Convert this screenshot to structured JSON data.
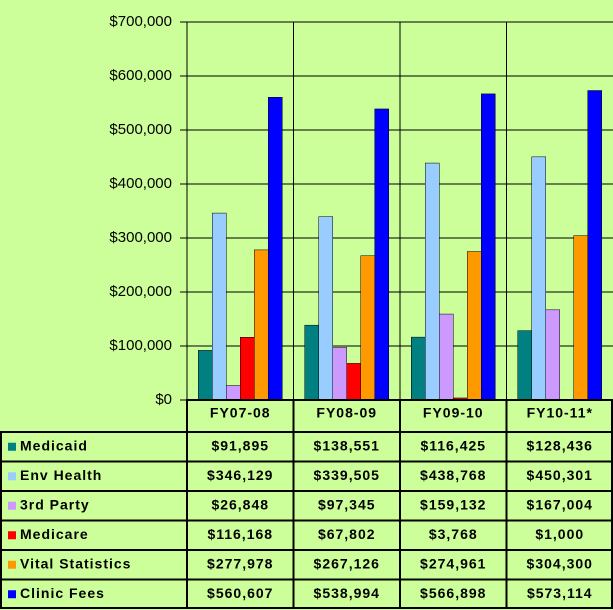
{
  "chart_data": {
    "type": "bar",
    "categories": [
      "FY07-08",
      "FY08-09",
      "FY09-10",
      "FY10-11*"
    ],
    "ylim": [
      0,
      700000
    ],
    "yticks": [
      {
        "value": 0,
        "label": "$0"
      },
      {
        "value": 100000,
        "label": "$100,000"
      },
      {
        "value": 200000,
        "label": "$200,000"
      },
      {
        "value": 300000,
        "label": "$300,000"
      },
      {
        "value": 400000,
        "label": "$400,000"
      },
      {
        "value": 500000,
        "label": "$500,000"
      },
      {
        "value": 600000,
        "label": "$600,000"
      },
      {
        "value": 700000,
        "label": "$700,000"
      }
    ],
    "grid": true,
    "series": [
      {
        "name": "Medicaid",
        "color": "#008080",
        "values": [
          91895,
          138551,
          116425,
          128436
        ],
        "value_labels": [
          "$91,895",
          "$138,551",
          "$116,425",
          "$128,436"
        ]
      },
      {
        "name": "Env Health",
        "color": "#99ccff",
        "values": [
          346129,
          339505,
          438768,
          450301
        ],
        "value_labels": [
          "$346,129",
          "$339,505",
          "$438,768",
          "$450,301"
        ]
      },
      {
        "name": "3rd Party",
        "color": "#cc99ff",
        "values": [
          26848,
          97345,
          159132,
          167004
        ],
        "value_labels": [
          "$26,848",
          "$97,345",
          "$159,132",
          "$167,004"
        ]
      },
      {
        "name": "Medicare",
        "color": "#ff0000",
        "values": [
          116168,
          67802,
          3768,
          1000
        ],
        "value_labels": [
          "$116,168",
          "$67,802",
          "$3,768",
          "$1,000"
        ]
      },
      {
        "name": "Vital Statistics",
        "color": "#ff9900",
        "values": [
          277978,
          267126,
          274961,
          304300
        ],
        "value_labels": [
          "$277,978",
          "$267,126",
          "$274,961",
          "$304,300"
        ]
      },
      {
        "name": "Clinic Fees",
        "color": "#0000ff",
        "values": [
          560607,
          538994,
          566898,
          573114
        ],
        "value_labels": [
          "$560,607",
          "$538,994",
          "$566,898",
          "$573,114"
        ]
      }
    ]
  }
}
